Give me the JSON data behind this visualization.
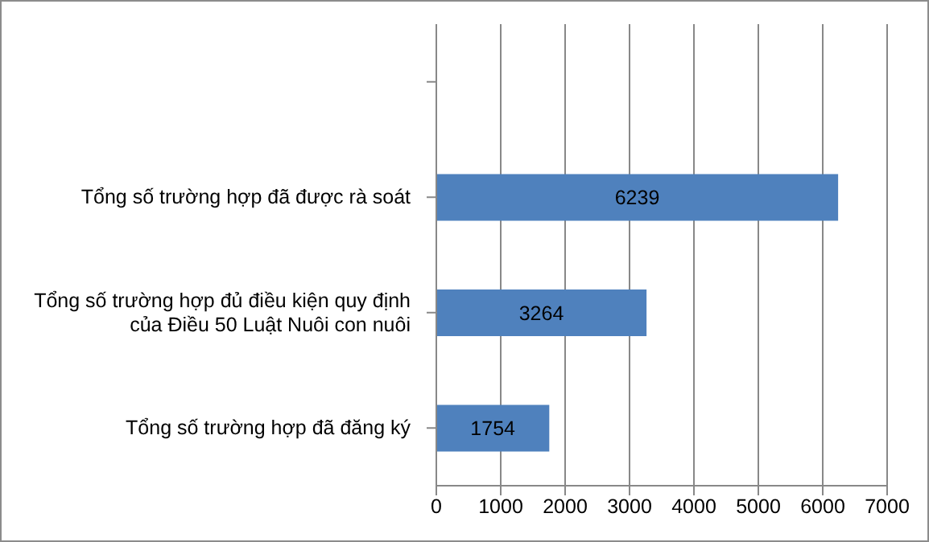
{
  "chart_data": {
    "type": "bar",
    "orientation": "horizontal",
    "categories": [
      null,
      "Tổng số trường hợp đã được rà soát",
      "Tổng số trường hợp đủ điều kiện quy định của Điều 50 Luật Nuôi con nuôi",
      "Tổng số trường hợp đã đăng ký"
    ],
    "values": [
      null,
      6239,
      3264,
      1754
    ],
    "color": "#4f81bd",
    "xlim": [
      0,
      7000
    ],
    "xticks": [
      0,
      1000,
      2000,
      3000,
      4000,
      5000,
      6000,
      7000
    ],
    "grid": "x",
    "data_labels": true
  }
}
